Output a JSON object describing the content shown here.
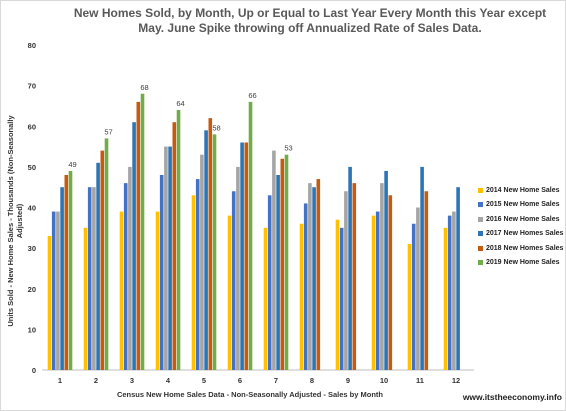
{
  "chart_data": {
    "type": "bar",
    "title": "New Homes Sold, by Month, Up or Equal to Last Year  Every Month this Year except May.  June Spike throwing off Annualized Rate of Sales Data.",
    "xlabel": "Census New Home Sales Data - Non-Seasonally Adjusted - Sales by Month",
    "ylabel": "Units Sold - New Home Sales - Thousands (Non-Seasonally Adjusted)",
    "ylim": [
      0,
      80
    ],
    "yticks": [
      "0",
      "10",
      "20",
      "30",
      "40",
      "50",
      "60",
      "70",
      "80"
    ],
    "categories": [
      "1",
      "2",
      "3",
      "4",
      "5",
      "6",
      "7",
      "8",
      "9",
      "10",
      "11",
      "12"
    ],
    "grid": false,
    "legend_position": "right",
    "series": [
      {
        "name": "2014 New Home Sales",
        "color": "#ffc000",
        "values": [
          33,
          35,
          39,
          39,
          43,
          38,
          35,
          36,
          37,
          38,
          31,
          35
        ]
      },
      {
        "name": "2015 New Home Sales",
        "color": "#4472c4",
        "values": [
          39,
          45,
          46,
          48,
          47,
          44,
          43,
          41,
          35,
          39,
          36,
          38
        ]
      },
      {
        "name": "2016 New Home Sales",
        "color": "#a5a5a5",
        "values": [
          39,
          45,
          50,
          55,
          53,
          50,
          54,
          46,
          44,
          46,
          40,
          39
        ]
      },
      {
        "name": "2017 New Homes Sales",
        "color": "#2e75b6",
        "values": [
          45,
          51,
          61,
          55,
          59,
          56,
          48,
          45,
          50,
          49,
          50,
          45
        ]
      },
      {
        "name": "2018 New Homes Sales",
        "color": "#c55a11",
        "values": [
          48,
          54,
          66,
          61,
          62,
          56,
          52,
          47,
          46,
          43,
          44,
          null
        ]
      },
      {
        "name": "2019 New Home Sales",
        "color": "#70ad47",
        "values": [
          49,
          57,
          68,
          64,
          58,
          66,
          53,
          null,
          null,
          null,
          null,
          null
        ]
      }
    ],
    "data_labels": [
      {
        "category": "1",
        "series": "2019 New Home Sales",
        "text": "49"
      },
      {
        "category": "2",
        "series": "2019 New Home Sales",
        "text": "57"
      },
      {
        "category": "3",
        "series": "2019 New Home Sales",
        "text": "68"
      },
      {
        "category": "4",
        "series": "2019 New Home Sales",
        "text": "64"
      },
      {
        "category": "5",
        "series": "2019 New Home Sales",
        "text": "58"
      },
      {
        "category": "6",
        "series": "2019 New Home Sales",
        "text": "66"
      },
      {
        "category": "7",
        "series": "2019 New Home Sales",
        "text": "53"
      }
    ]
  },
  "footer": {
    "source": "www.itstheeconomy.info"
  }
}
